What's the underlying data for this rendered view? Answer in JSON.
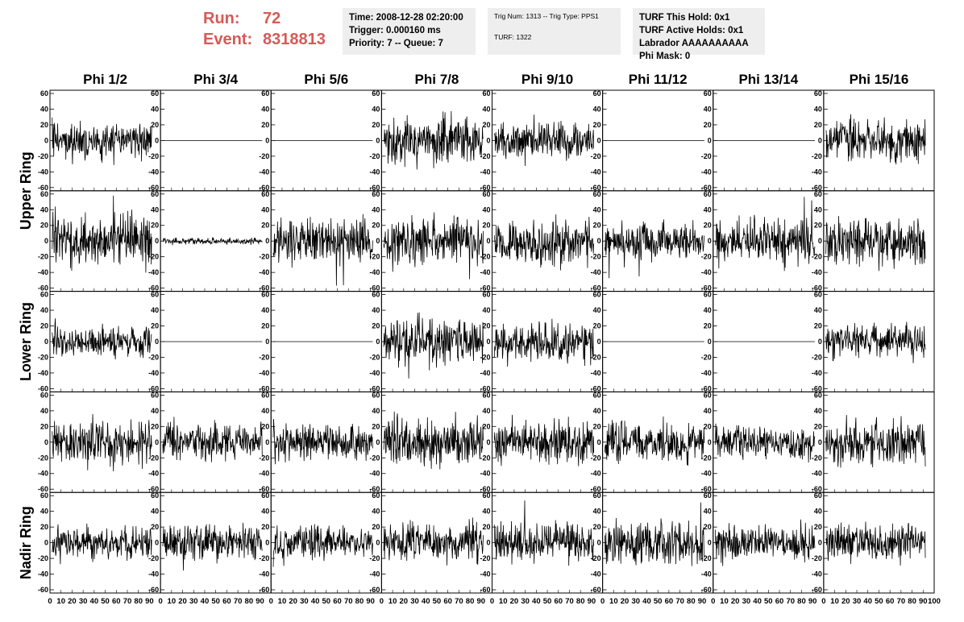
{
  "header": {
    "run_label": "Run:",
    "run_value": "72",
    "event_label": "Event:",
    "event_value": "8318813",
    "colors": {
      "run_text": "#d65a56",
      "box_bg": "#eeeeee"
    }
  },
  "info_boxes": {
    "timing": [
      "Time: 2008-12-28 02:20:00",
      "Trigger: 0.000160 ms",
      "Priority: 7 -- Queue: 7"
    ],
    "trigger": [
      "Trig Num: 1313 -- Trig Type: PPS1",
      "TURF: 1322"
    ],
    "turf": [
      "TURF This Hold: 0x1",
      "TURF Active Holds: 0x1",
      "Labrador AAAAAAAAAA",
      "Phi Mask: 0"
    ]
  },
  "chart_data": {
    "type": "line",
    "columns": [
      "Phi 1/2",
      "Phi 3/4",
      "Phi 5/6",
      "Phi 7/8",
      "Phi 9/10",
      "Phi 11/12",
      "Phi 13/14",
      "Phi 15/16"
    ],
    "ring_labels": [
      "Upper Ring",
      "Lower Ring",
      "Nadir Ring"
    ],
    "row_count": 5,
    "xlim": [
      0,
      100
    ],
    "ylim": [
      -60,
      60
    ],
    "x_ticks": [
      0,
      10,
      20,
      30,
      40,
      50,
      60,
      70,
      80,
      90,
      100
    ],
    "y_ticks": [
      60,
      40,
      20,
      0,
      -20,
      -40,
      -60
    ],
    "samples": 256,
    "x_extent": [
      2,
      92
    ],
    "grid": false,
    "line_color": "#000000",
    "panels": [
      [
        {
          "amp": 10,
          "seed": 1
        },
        {
          "amp": 0,
          "seed": 2
        },
        {
          "amp": 0,
          "seed": 3
        },
        {
          "amp": 14,
          "seed": 4
        },
        {
          "amp": 12,
          "seed": 5
        },
        {
          "amp": 0,
          "seed": 6
        },
        {
          "amp": 0,
          "seed": 7
        },
        {
          "amp": 13,
          "seed": 8
        }
      ],
      [
        {
          "amp": 16,
          "seed": 11
        },
        {
          "amp": 2,
          "seed": 12
        },
        {
          "amp": 14,
          "seed": 13
        },
        {
          "amp": 14,
          "seed": 14
        },
        {
          "amp": 15,
          "seed": 15
        },
        {
          "amp": 11,
          "seed": 16
        },
        {
          "amp": 14,
          "seed": 17
        },
        {
          "amp": 14,
          "seed": 18
        }
      ],
      [
        {
          "amp": 10,
          "seed": 21
        },
        {
          "amp": 0,
          "seed": 22
        },
        {
          "amp": 0,
          "seed": 23
        },
        {
          "amp": 14,
          "seed": 24
        },
        {
          "amp": 12,
          "seed": 25
        },
        {
          "amp": 0,
          "seed": 26
        },
        {
          "amp": 0,
          "seed": 27
        },
        {
          "amp": 10,
          "seed": 28
        }
      ],
      [
        {
          "amp": 14,
          "seed": 31
        },
        {
          "amp": 11,
          "seed": 32
        },
        {
          "amp": 11,
          "seed": 33
        },
        {
          "amp": 14,
          "seed": 34
        },
        {
          "amp": 14,
          "seed": 35
        },
        {
          "amp": 12,
          "seed": 36
        },
        {
          "amp": 10,
          "seed": 37
        },
        {
          "amp": 13,
          "seed": 38
        }
      ],
      [
        {
          "amp": 10,
          "seed": 41
        },
        {
          "amp": 11,
          "seed": 42
        },
        {
          "amp": 10,
          "seed": 43
        },
        {
          "amp": 12,
          "seed": 44
        },
        {
          "amp": 12,
          "seed": 45
        },
        {
          "amp": 13,
          "seed": 46
        },
        {
          "amp": 11,
          "seed": 47
        },
        {
          "amp": 11,
          "seed": 48
        }
      ]
    ]
  }
}
